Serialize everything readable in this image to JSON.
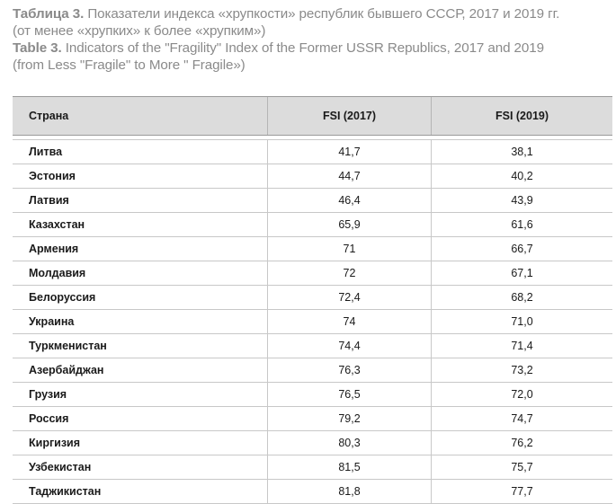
{
  "caption": {
    "ru_label": "Таблица 3.",
    "ru_text": "Показатели индекса «хрупкости» республик бывшего СССР, 2017 и 2019 гг.",
    "ru_text2": "(от менее «хрупких» к более «хрупким»)",
    "en_label": "Table 3.",
    "en_text": "Indicators of the \"Fragility\" Index of the Former USSR Republics, 2017 and 2019",
    "en_text2": "(from Less \"Fragile\" to More \" Fragile»)"
  },
  "table": {
    "headers": [
      "Страна",
      "FSI (2017)",
      "FSI (2019)"
    ],
    "rows": [
      [
        "Литва",
        "41,7",
        "38,1"
      ],
      [
        "Эстония",
        "44,7",
        "40,2"
      ],
      [
        "Латвия",
        "46,4",
        "43,9"
      ],
      [
        "Казахстан",
        "65,9",
        "61,6"
      ],
      [
        "Армения",
        "71",
        "66,7"
      ],
      [
        "Молдавия",
        "72",
        "67,1"
      ],
      [
        "Белоруссия",
        "72,4",
        "68,2"
      ],
      [
        "Украина",
        "74",
        "71,0"
      ],
      [
        "Туркменистан",
        "74,4",
        "71,4"
      ],
      [
        "Азербайджан",
        "76,3",
        "73,2"
      ],
      [
        "Грузия",
        "76,5",
        "72,0"
      ],
      [
        "Россия",
        "79,2",
        "74,7"
      ],
      [
        "Киргизия",
        "80,3",
        "76,2"
      ],
      [
        "Узбекистан",
        "81,5",
        "75,7"
      ],
      [
        "Таджикистан",
        "81,8",
        "77,7"
      ]
    ]
  }
}
